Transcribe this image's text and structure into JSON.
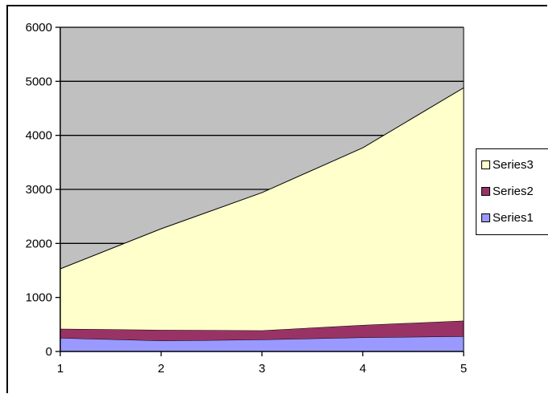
{
  "chart_data": {
    "type": "area",
    "stacked": true,
    "x": [
      1,
      2,
      3,
      4,
      5
    ],
    "ylim": [
      0,
      6000
    ],
    "yticks": [
      "0",
      "1000",
      "2000",
      "3000",
      "4000",
      "5000",
      "6000"
    ],
    "xticks": [
      "1",
      "2",
      "3",
      "4",
      "5"
    ],
    "grid": true,
    "legend_position": "right",
    "plot_background": "#c0c0c0",
    "series": [
      {
        "name": "Series1",
        "color": "#9999ff",
        "values": [
          250,
          200,
          220,
          260,
          280
        ]
      },
      {
        "name": "Series2",
        "color": "#993366",
        "values": [
          170,
          200,
          170,
          230,
          290
        ]
      },
      {
        "name": "Series3",
        "color": "#ffffcc",
        "values": [
          1110,
          1870,
          2550,
          3280,
          4310
        ]
      }
    ]
  }
}
